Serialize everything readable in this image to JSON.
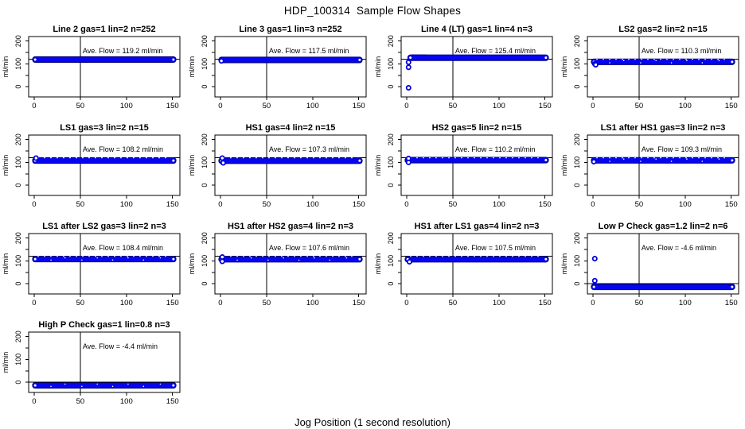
{
  "header": {
    "title": "HDP_100314  Sample Flow Shapes"
  },
  "footer": {
    "xlabel": "Jog Position (1 second resolution)"
  },
  "chart_data": {
    "type": "scatter",
    "title": "HDP_100314  Sample Flow Shapes",
    "xlabel": "Jog Position (1 second resolution)",
    "ylabel": "ml/min",
    "layout": {
      "rows": 4,
      "cols": 4,
      "filled_panels": 13,
      "legend": "none",
      "grid": "off"
    },
    "xlim": [
      -6,
      158
    ],
    "ylim": [
      -45,
      220
    ],
    "x_ticks": [
      0,
      50,
      100,
      150
    ],
    "y_ticks": [
      0,
      50,
      100,
      150,
      200
    ],
    "y_tick_labels": [
      0,
      100,
      200
    ],
    "vline_x": 50,
    "point_color": "#0505f0",
    "band_edge_color": "#000088",
    "outlier_stroke_color": "#0000d8",
    "axis_color": "#000000",
    "panels": [
      {
        "title": "Line 2 gas=1 lin=2 n=252",
        "ave_flow": 119.2,
        "ave_label": "Ave. Flow =  119.2  ml/min",
        "refline": 120,
        "band": {
          "x0": 0,
          "x1": 152,
          "y": 119
        },
        "outliers": [],
        "speckled": false
      },
      {
        "title": "Line 3 gas=1 lin=3 n=252",
        "ave_flow": 117.5,
        "ave_label": "Ave. Flow =  117.5  ml/min",
        "refline": 120,
        "band": {
          "x0": 0,
          "x1": 152,
          "y": 117.5
        },
        "outliers": [
          [
            1,
            113
          ]
        ],
        "speckled": false
      },
      {
        "title": "Line 4 (LT) gas=1 lin=4 n=3",
        "ave_flow": 125.4,
        "ave_label": "Ave. Flow =  125.4  ml/min",
        "refline": 120,
        "band": {
          "x0": 3,
          "x1": 152,
          "y": 127
        },
        "extra_band": {
          "x0": 4,
          "x1": 22,
          "y": 134
        },
        "outliers": [
          [
            2,
            -5
          ],
          [
            2,
            85
          ],
          [
            2,
            107
          ]
        ],
        "speckled": false
      },
      {
        "title": "LS2 gas=2 lin=2 n=15",
        "ave_flow": 110.3,
        "ave_label": "Ave. Flow =  110.3  ml/min",
        "refline": 120,
        "band": {
          "x0": 0,
          "x1": 152,
          "y": 109
        },
        "outliers": [
          [
            2,
            100
          ],
          [
            3,
            96
          ]
        ],
        "speckled": true
      },
      {
        "title": "LS1 gas=3 lin=2 n=15",
        "ave_flow": 108.2,
        "ave_label": "Ave. Flow =  108.2  ml/min",
        "refline": 120,
        "band": {
          "x0": 0,
          "x1": 152,
          "y": 108
        },
        "outliers": [
          [
            2,
            119
          ]
        ],
        "speckled": false
      },
      {
        "title": "HS1 gas=4 lin=2 n=15",
        "ave_flow": 107.3,
        "ave_label": "Ave. Flow =  107.3  ml/min",
        "refline": 120,
        "band": {
          "x0": 0,
          "x1": 152,
          "y": 107.5
        },
        "outliers": [
          [
            2,
            119
          ],
          [
            3,
            98
          ]
        ],
        "speckled": false
      },
      {
        "title": "HS2 gas=5 lin=2 n=15",
        "ave_flow": 110.2,
        "ave_label": "Ave. Flow =  110.2  ml/min",
        "refline": 120,
        "band": {
          "x0": 0,
          "x1": 152,
          "y": 110
        },
        "outliers": [
          [
            2,
            117
          ],
          [
            2,
            100
          ]
        ],
        "speckled": false
      },
      {
        "title": "LS1 after HS1 gas=3 lin=2 n=3",
        "ave_flow": 109.3,
        "ave_label": "Ave. Flow =  109.3  ml/min",
        "refline": 120,
        "band": {
          "x0": 0,
          "x1": 152,
          "y": 109
        },
        "outliers": [
          [
            1,
            103
          ]
        ],
        "speckled": true
      },
      {
        "title": "LS1 after LS2 gas=3 lin=2 n=3",
        "ave_flow": 108.4,
        "ave_label": "Ave. Flow =  108.4  ml/min",
        "refline": 120,
        "band": {
          "x0": 0,
          "x1": 152,
          "y": 108
        },
        "outliers": [],
        "speckled": true
      },
      {
        "title": "HS1 after HS2 gas=4 lin=2 n=3",
        "ave_flow": 107.6,
        "ave_label": "Ave. Flow =  107.6  ml/min",
        "refline": 120,
        "band": {
          "x0": 0,
          "x1": 152,
          "y": 107.5
        },
        "outliers": [
          [
            2,
            117
          ],
          [
            2,
            98
          ]
        ],
        "speckled": true
      },
      {
        "title": "HS1 after LS1 gas=4 lin=2 n=3",
        "ave_flow": 107.5,
        "ave_label": "Ave. Flow =  107.5  ml/min",
        "refline": 120,
        "band": {
          "x0": 0,
          "x1": 152,
          "y": 107.5
        },
        "outliers": [
          [
            3,
            96
          ]
        ],
        "speckled": false
      },
      {
        "title": "Low P Check gas=1.2 lin=2 n=6",
        "ave_flow": -4.6,
        "ave_label": "Ave. Flow =  -4.6  ml/min",
        "refline": 0,
        "band": {
          "x0": 0,
          "x1": 152,
          "y": -14
        },
        "outliers": [
          [
            2,
            110
          ],
          [
            2,
            13
          ]
        ],
        "speckled": false
      },
      {
        "title": "High P Check gas=1 lin=0.8 n=3",
        "ave_flow": -4.4,
        "ave_label": "Ave. Flow =  -4.4  ml/min",
        "refline": 0,
        "band": {
          "x0": 0,
          "x1": 152,
          "y": -14
        },
        "outliers": [],
        "speckled": true
      }
    ]
  }
}
